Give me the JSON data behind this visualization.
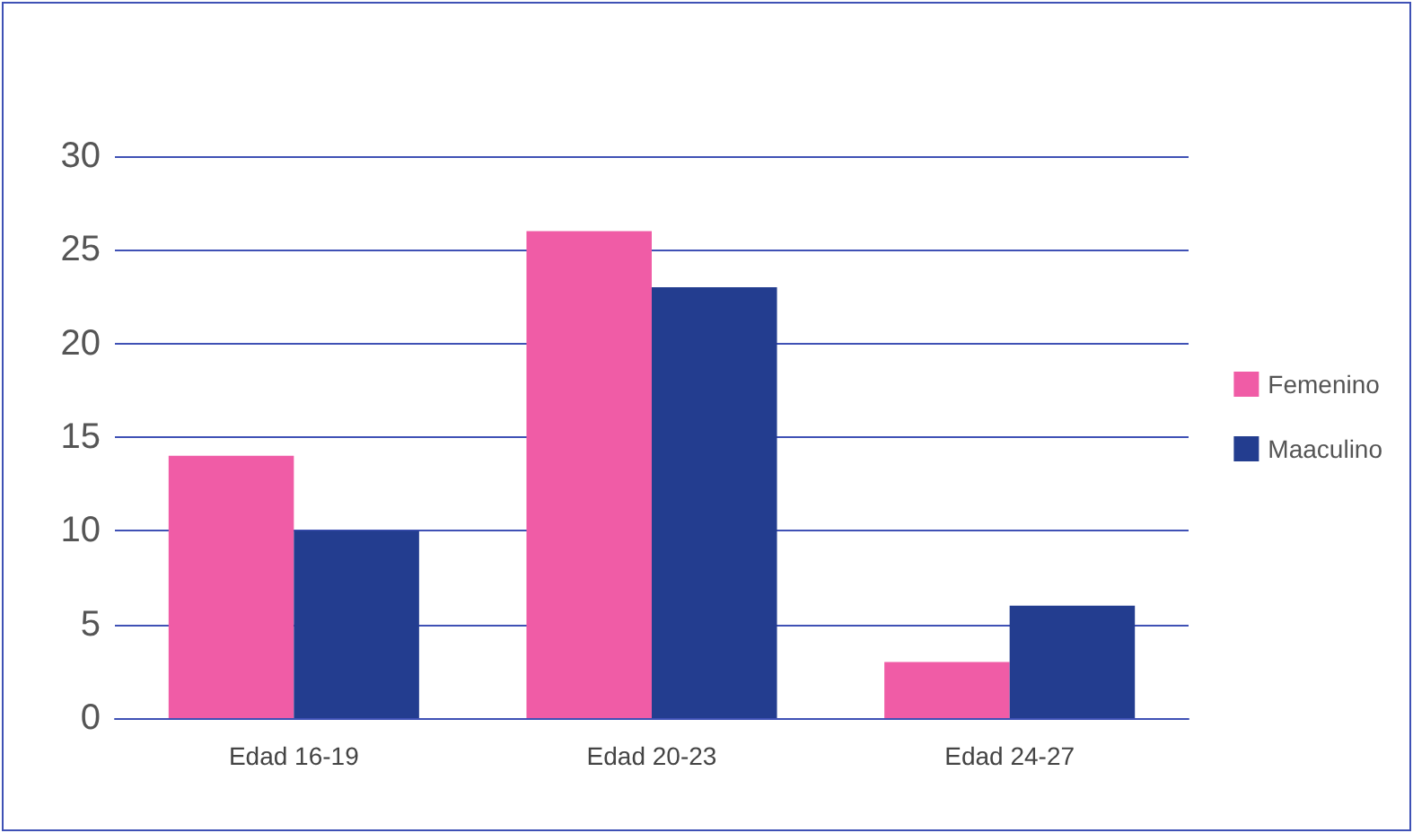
{
  "chart_data": {
    "type": "bar",
    "categories": [
      "Edad 16-19",
      "Edad 20-23",
      "Edad 24-27"
    ],
    "series": [
      {
        "name": "Femenino",
        "color": "#f05ca6",
        "values": [
          14,
          26,
          3
        ]
      },
      {
        "name": "Maaculino",
        "color": "#233d8f",
        "values": [
          10,
          23,
          6
        ]
      }
    ],
    "ylim": [
      0,
      30
    ],
    "yticks": [
      0,
      5,
      10,
      15,
      20,
      25,
      30
    ],
    "grid": "y",
    "legend": "right"
  }
}
